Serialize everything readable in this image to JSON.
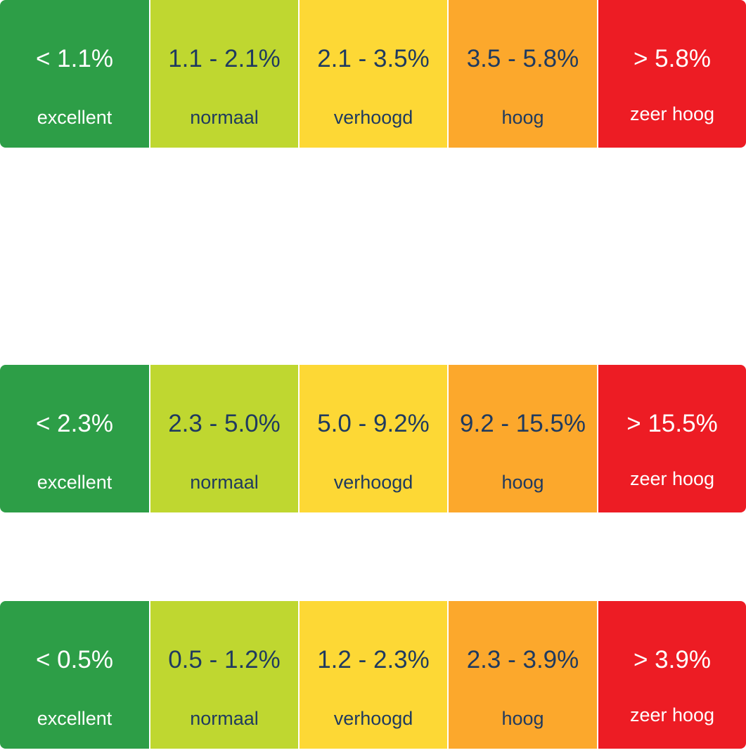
{
  "colors": {
    "excellent": "#2D9E47",
    "normaal": "#BFD730",
    "verhoogd": "#FDD835",
    "hoog": "#FCA82C",
    "zeer_hoog": "#ED1C24",
    "text_dark": "#1F3A5F",
    "text_light": "#FFFFFF"
  },
  "scales": [
    {
      "categories": [
        {
          "range": "< 1.1%",
          "label": "excellent"
        },
        {
          "range": "1.1 - 2.1%",
          "label": "normaal"
        },
        {
          "range": "2.1 - 3.5%",
          "label": "verhoogd"
        },
        {
          "range": "3.5 - 5.8%",
          "label": "hoog"
        },
        {
          "range": "> 5.8%",
          "label": "zeer hoog"
        }
      ]
    },
    {
      "categories": [
        {
          "range": "< 2.3%",
          "label": "excellent"
        },
        {
          "range": "2.3 - 5.0%",
          "label": "normaal"
        },
        {
          "range": "5.0 - 9.2%",
          "label": "verhoogd"
        },
        {
          "range": "9.2 - 15.5%",
          "label": "hoog"
        },
        {
          "range": "> 15.5%",
          "label": "zeer hoog"
        }
      ]
    },
    {
      "categories": [
        {
          "range": "< 0.5%",
          "label": "excellent"
        },
        {
          "range": "0.5 - 1.2%",
          "label": "normaal"
        },
        {
          "range": "1.2 - 2.3%",
          "label": "verhoogd"
        },
        {
          "range": "2.3 - 3.9%",
          "label": "hoog"
        },
        {
          "range": "> 3.9%",
          "label": "zeer hoog"
        }
      ]
    }
  ]
}
